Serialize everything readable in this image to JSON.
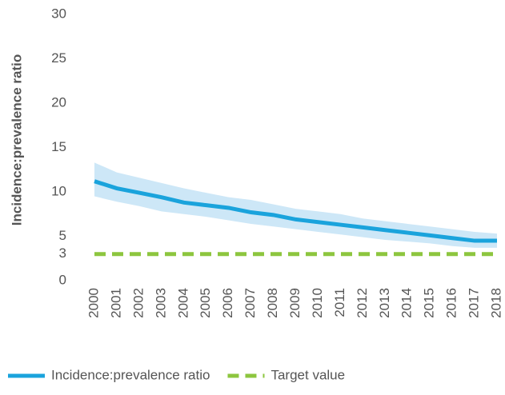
{
  "chart_data": {
    "type": "line",
    "y_label": "Incidence:prevalence ratio",
    "x": [
      "2000",
      "2001",
      "2002",
      "2003",
      "2004",
      "2005",
      "2006",
      "2007",
      "2008",
      "2009",
      "2010",
      "2011",
      "2012",
      "2013",
      "2014",
      "2015",
      "2016",
      "2017",
      "2018"
    ],
    "series": [
      {
        "name": "Incidence:prevalence ratio",
        "color": "#1aa3dc",
        "style": "solid",
        "values": [
          11.2,
          10.4,
          9.9,
          9.4,
          8.8,
          8.5,
          8.2,
          7.7,
          7.4,
          6.9,
          6.6,
          6.3,
          6.0,
          5.7,
          5.4,
          5.1,
          4.8,
          4.5,
          4.5
        ],
        "band": {
          "color": "#cde7f7",
          "upper": [
            13.3,
            12.2,
            11.6,
            11.0,
            10.4,
            9.9,
            9.4,
            9.1,
            8.6,
            8.1,
            7.8,
            7.5,
            7.0,
            6.7,
            6.4,
            6.1,
            5.8,
            5.5,
            5.3
          ],
          "lower": [
            9.5,
            8.9,
            8.4,
            7.8,
            7.5,
            7.2,
            6.8,
            6.4,
            6.1,
            5.8,
            5.5,
            5.2,
            4.9,
            4.6,
            4.4,
            4.2,
            3.9,
            3.7,
            3.7
          ]
        }
      },
      {
        "name": "Target value",
        "color": "#8dc63f",
        "style": "dashed",
        "values": [
          3,
          3,
          3,
          3,
          3,
          3,
          3,
          3,
          3,
          3,
          3,
          3,
          3,
          3,
          3,
          3,
          3,
          3,
          3
        ]
      }
    ],
    "ylim": [
      0,
      30
    ],
    "yticks": [
      0,
      3,
      5,
      10,
      15,
      20,
      25,
      30
    ],
    "legend": "bottom"
  }
}
